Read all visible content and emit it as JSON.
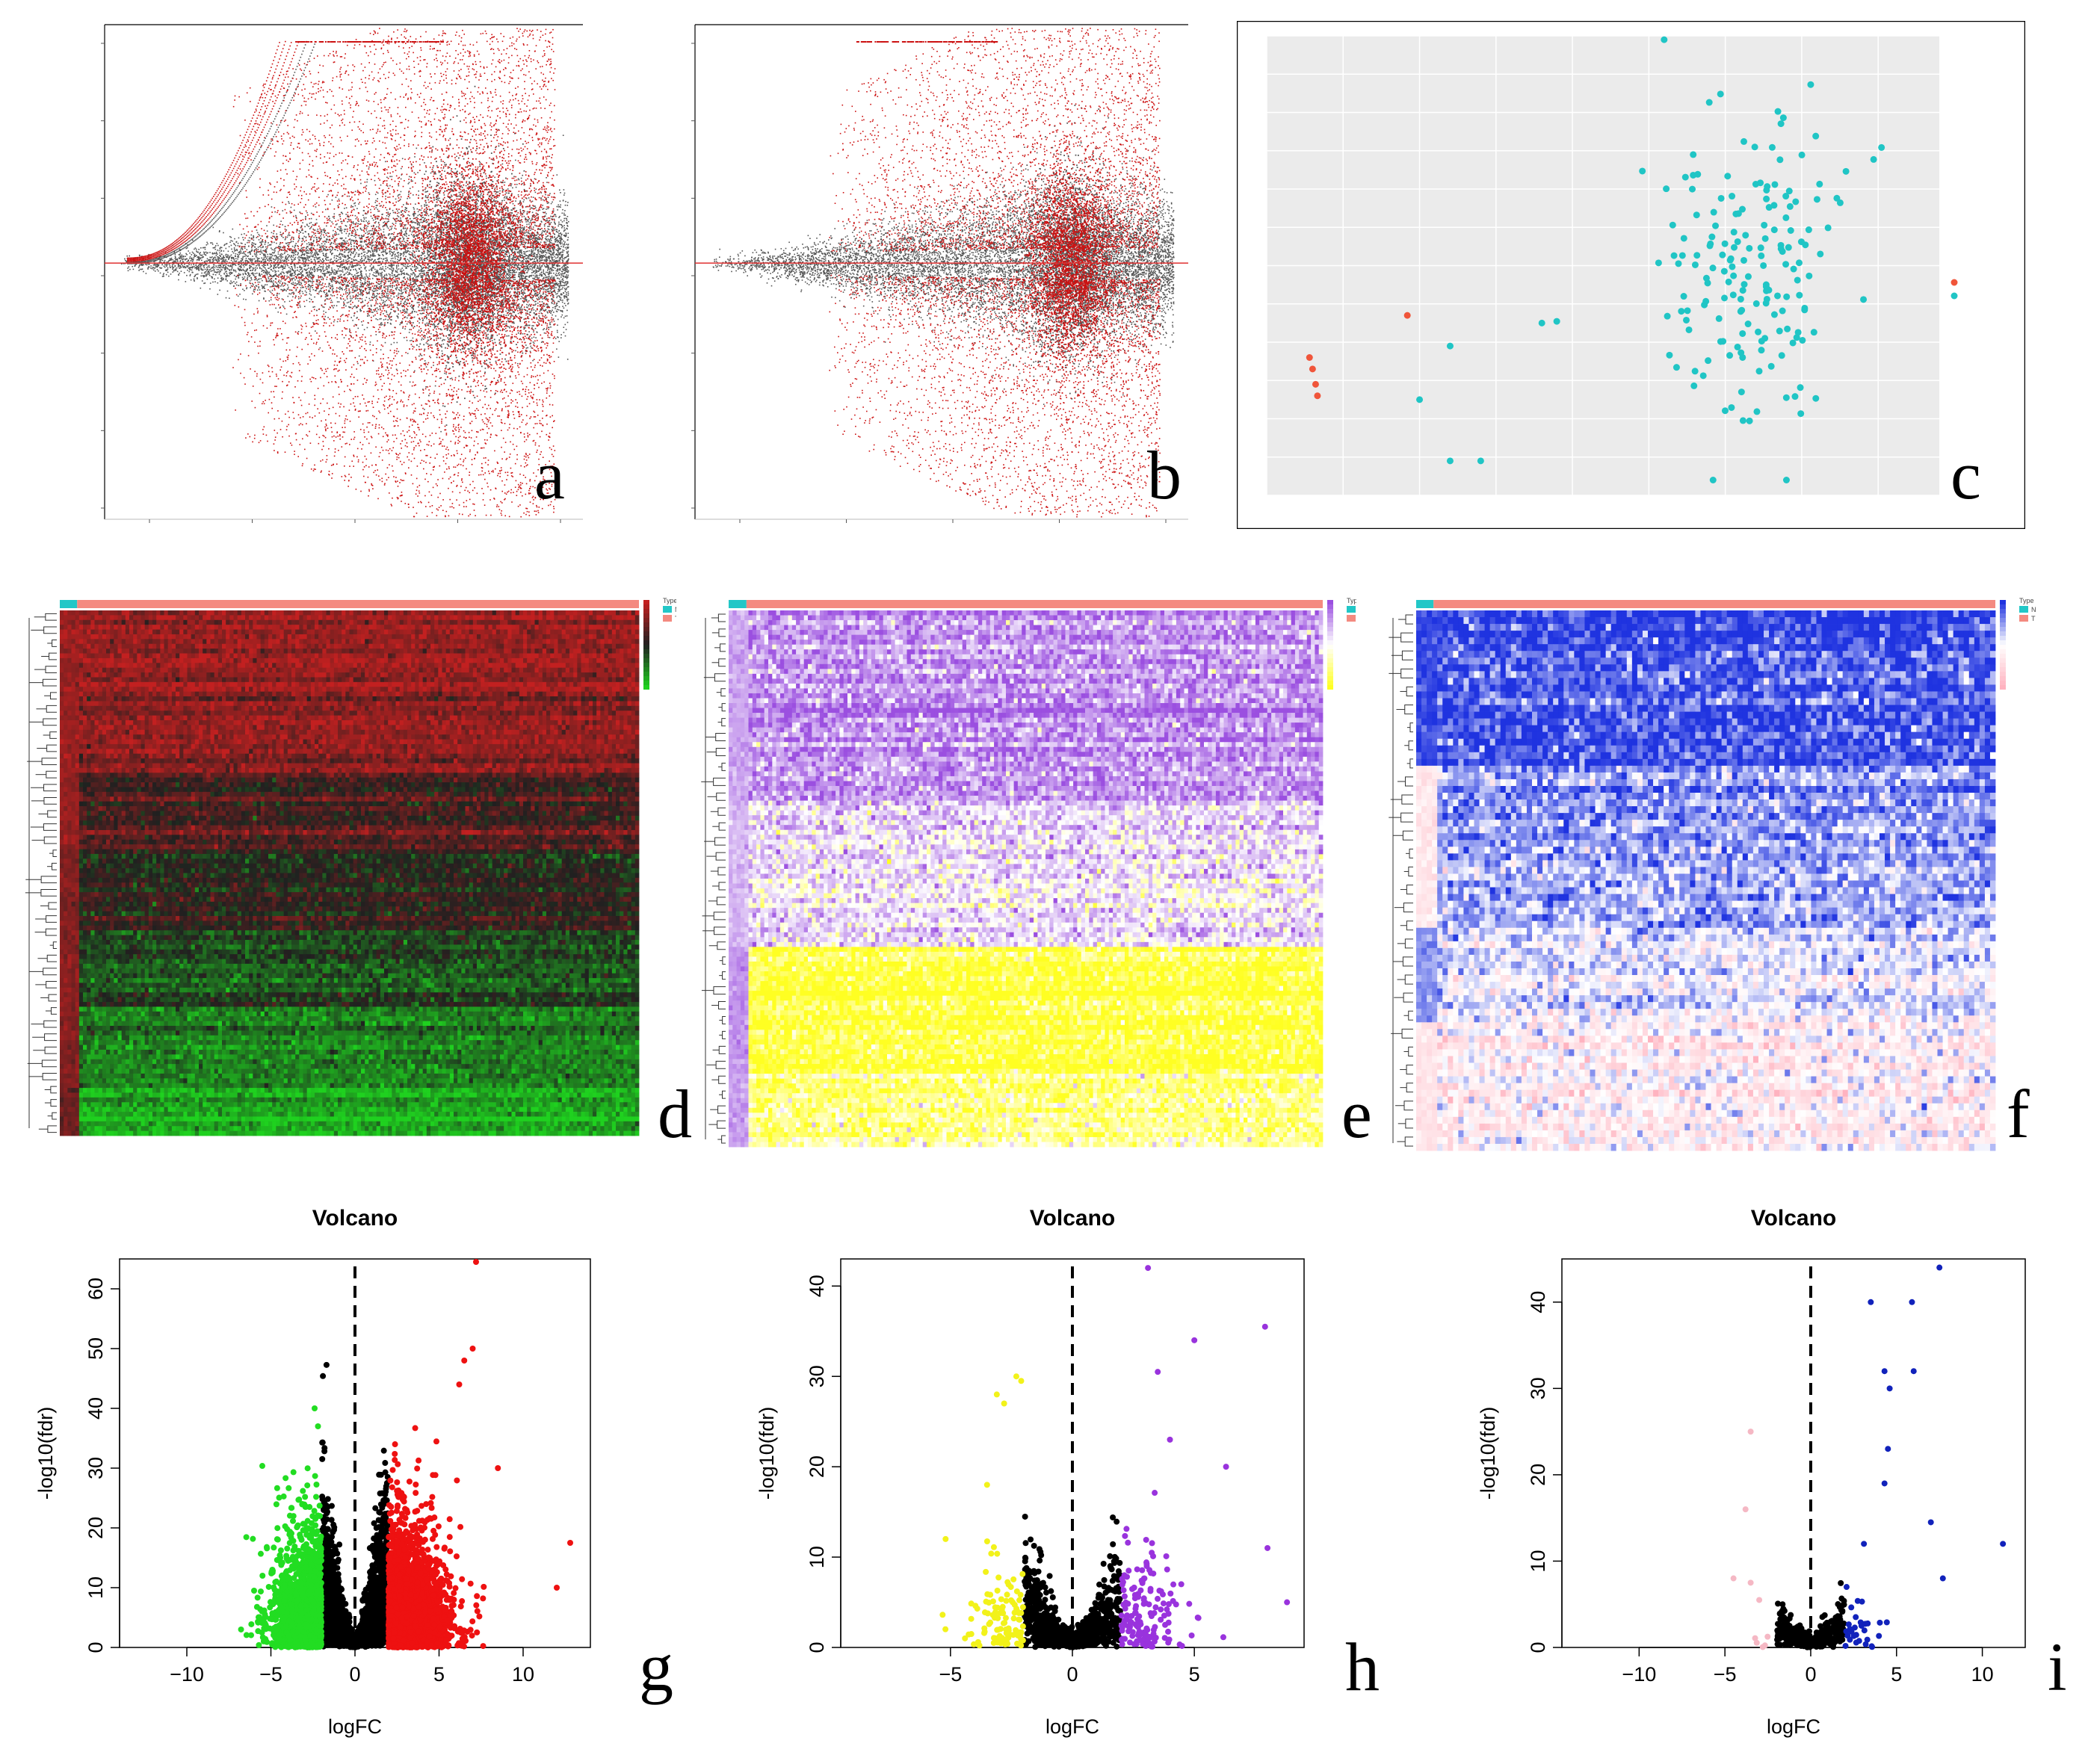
{
  "panel_labels": {
    "a": "a",
    "b": "b",
    "c": "c",
    "d": "d",
    "e": "e",
    "f": "f",
    "g": "g",
    "h": "h",
    "i": "i"
  },
  "colors": {
    "ma_gray": "#555555",
    "ma_red": "#cc1111",
    "pca_tumor": "#20c5c5",
    "pca_normal": "#f0553a",
    "heat_d": [
      "#1fd11f",
      "#202020",
      "#c22020"
    ],
    "heat_e": [
      "#ffff22",
      "#ffffff",
      "#9b4fe0"
    ],
    "heat_f": [
      "#ffb3c0",
      "#ffffff",
      "#1f33e0"
    ],
    "type_N": "#22c7c7",
    "type_T": "#f48a80",
    "volcano_g": {
      "down": "#22dd22",
      "up": "#ee1111",
      "ns": "#000000"
    },
    "volcano_h": {
      "down": "#f2f21a",
      "up": "#9933dd",
      "ns": "#000000"
    },
    "volcano_i": {
      "down": "#f5b8c4",
      "up": "#1122bb",
      "ns": "#000000"
    }
  },
  "chart_data": [
    {
      "id": "a",
      "type": "scatter",
      "subtype": "MA-plot",
      "title": "",
      "xlabel": "",
      "ylabel": "",
      "hline_at": 0,
      "series": [
        {
          "color": "ma_gray"
        },
        {
          "color": "ma_red"
        }
      ]
    },
    {
      "id": "b",
      "type": "scatter",
      "subtype": "MA-plot",
      "title": "",
      "xlabel": "",
      "ylabel": "",
      "hline_at": 0,
      "series": [
        {
          "color": "ma_gray"
        },
        {
          "color": "ma_red"
        }
      ]
    },
    {
      "id": "c",
      "type": "scatter",
      "subtype": "PCA",
      "title": "",
      "xlabel": "",
      "ylabel": "",
      "legend_position": "right",
      "grid": true,
      "xlim": [
        -75,
        35
      ],
      "ylim": [
        -30,
        30
      ],
      "series": [
        {
          "color": "pca_normal",
          "points": [
            [
              -68,
              -12
            ],
            [
              -67.5,
              -13.5
            ],
            [
              -67,
              -15.5
            ],
            [
              -66.7,
              -17
            ],
            [
              -52,
              -6.5
            ]
          ]
        },
        {
          "color": "pca_tumor"
        }
      ]
    },
    {
      "id": "d",
      "type": "heatmap",
      "title": "",
      "legend_title": "Type",
      "legend_entries": [
        "N",
        "T"
      ],
      "color_scale": "heat_d",
      "block_rows": [
        0.3,
        0.45,
        0.6,
        0.75,
        0.9
      ]
    },
    {
      "id": "e",
      "type": "heatmap",
      "title": "",
      "legend_title": "Type",
      "legend_entries": [
        "N",
        "T"
      ],
      "color_scale": "heat_e",
      "block_rows": [
        0.35,
        0.62,
        0.86
      ]
    },
    {
      "id": "f",
      "type": "heatmap",
      "title": "",
      "legend_title": "Type",
      "legend_entries": [
        "N",
        "T"
      ],
      "color_scale": "heat_f",
      "block_rows": [
        0.28,
        0.58,
        0.75
      ]
    },
    {
      "id": "g",
      "type": "scatter",
      "subtype": "volcano",
      "title": "Volcano",
      "xlabel": "logFC",
      "ylabel": "-log10(fdr)",
      "xlim": [
        -14,
        14
      ],
      "ylim": [
        0,
        65
      ],
      "xticks": [
        -10,
        -5,
        0,
        5,
        10
      ],
      "yticks": [
        0,
        10,
        20,
        30,
        40,
        50,
        60
      ],
      "vline_at": 0,
      "fc_cut": 2,
      "colors": "volcano_g",
      "up_extremes": [
        [
          7.2,
          64.5
        ],
        [
          7,
          50
        ],
        [
          6.5,
          48
        ],
        [
          6.2,
          44
        ],
        [
          8.5,
          30
        ],
        [
          12.8,
          17.5
        ],
        [
          12,
          10
        ]
      ],
      "down_extremes": [
        [
          -2.4,
          40
        ],
        [
          -2.2,
          37
        ],
        [
          -5.5,
          12
        ],
        [
          -6,
          9.5
        ]
      ]
    },
    {
      "id": "h",
      "type": "scatter",
      "subtype": "volcano",
      "title": "Volcano",
      "xlabel": "logFC",
      "ylabel": "-log10(fdr)",
      "xlim": [
        -9.5,
        9.5
      ],
      "ylim": [
        0,
        43
      ],
      "xticks": [
        -5,
        0,
        5
      ],
      "yticks": [
        0,
        10,
        20,
        30,
        40
      ],
      "vline_at": 0,
      "fc_cut": 2,
      "colors": "volcano_h",
      "up_extremes": [
        [
          3.1,
          42
        ],
        [
          5,
          34
        ],
        [
          7.9,
          35.5
        ],
        [
          3.5,
          30.5
        ],
        [
          4,
          23
        ],
        [
          6.3,
          20
        ],
        [
          8.8,
          5
        ],
        [
          8,
          11
        ]
      ],
      "down_extremes": [
        [
          -2.3,
          30
        ],
        [
          -2.1,
          29.5
        ],
        [
          -3.1,
          28
        ],
        [
          -2.8,
          27
        ],
        [
          -3.5,
          18
        ],
        [
          -5.2,
          12
        ]
      ]
    },
    {
      "id": "i",
      "type": "scatter",
      "subtype": "volcano",
      "title": "Volcano",
      "xlabel": "logFC",
      "ylabel": "-log10(fdr)",
      "xlim": [
        -14.5,
        12.5
      ],
      "ylim": [
        0,
        45
      ],
      "xticks": [
        -10,
        -5,
        0,
        5,
        10
      ],
      "yticks": [
        0,
        10,
        20,
        30,
        40
      ],
      "vline_at": 0,
      "fc_cut": 2,
      "colors": "volcano_i",
      "up_extremes": [
        [
          7.5,
          44
        ],
        [
          3.5,
          40
        ],
        [
          5.9,
          40
        ],
        [
          4.3,
          32
        ],
        [
          6,
          32
        ],
        [
          4.6,
          30
        ],
        [
          4.5,
          23
        ],
        [
          4.3,
          19
        ],
        [
          7,
          14.5
        ],
        [
          11.2,
          12
        ],
        [
          3.1,
          12
        ],
        [
          7.7,
          8
        ]
      ],
      "down_extremes": [
        [
          -3.5,
          25
        ],
        [
          -3.8,
          16
        ],
        [
          -4.5,
          8
        ],
        [
          -3.5,
          7.5
        ],
        [
          -3,
          5.5
        ]
      ]
    }
  ]
}
